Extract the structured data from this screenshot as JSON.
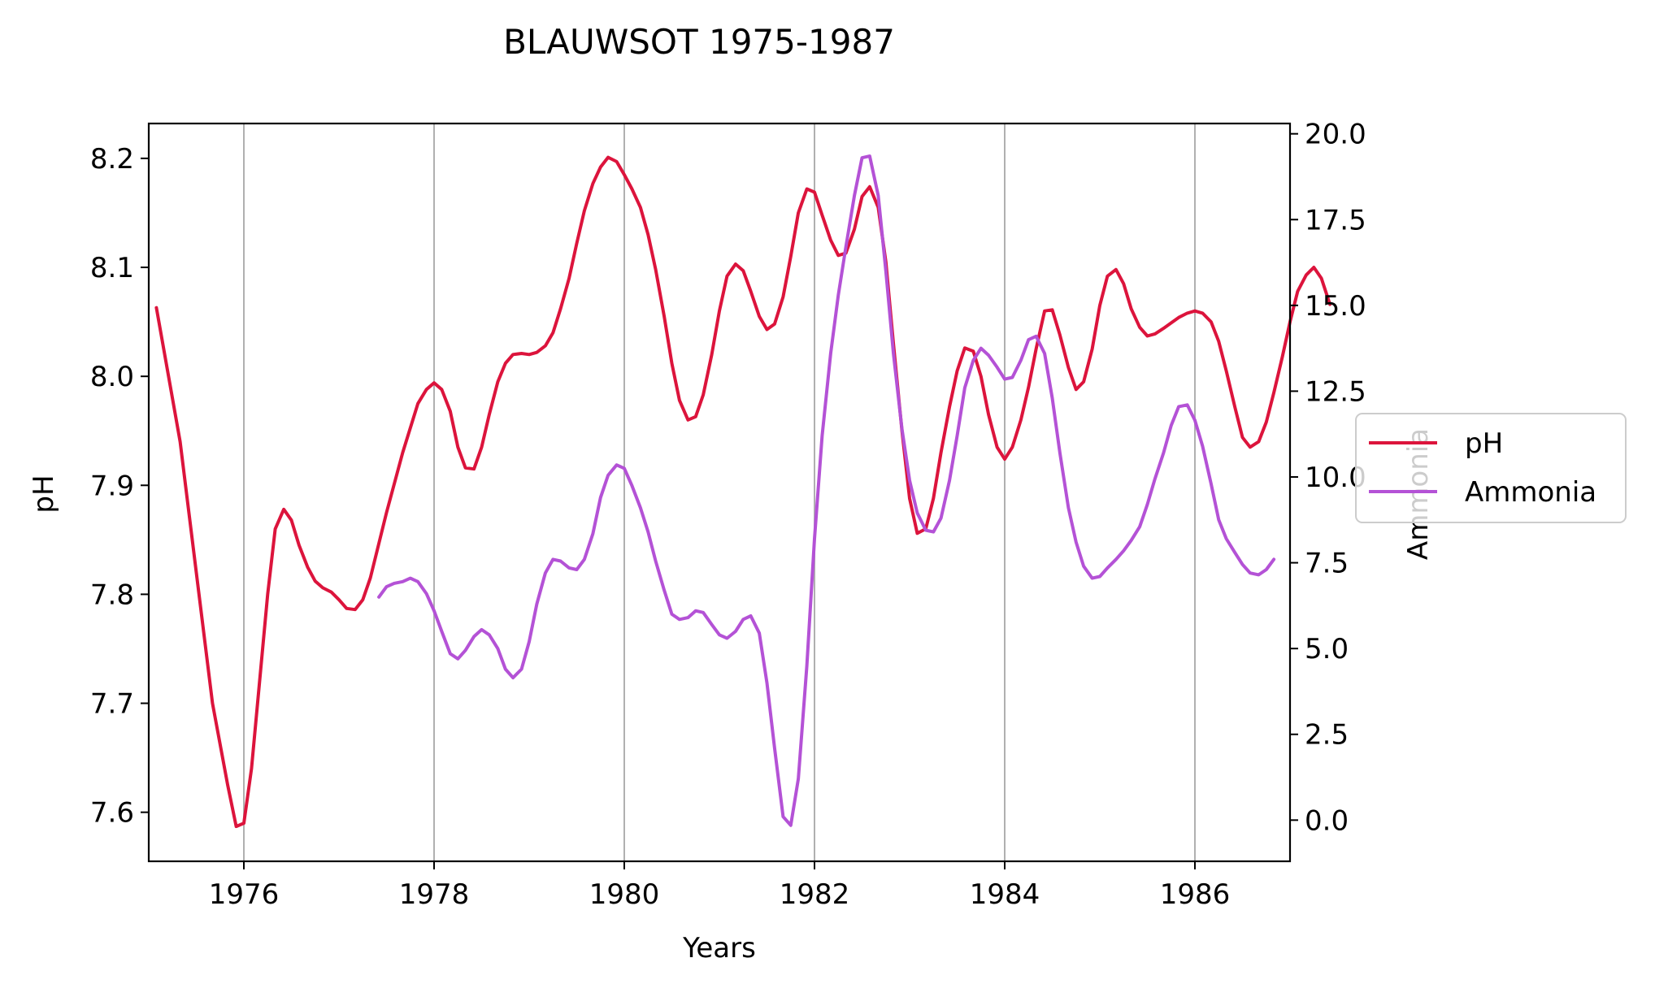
{
  "chart_data": {
    "type": "line",
    "title": "BLAUWSOT 1975-1987",
    "xlabel": "Years",
    "ylabel": "pH",
    "y2label": "Ammonia",
    "xlim": [
      1975.0,
      1987.0
    ],
    "ylim": [
      7.555,
      8.232
    ],
    "y2lim": [
      -1.2,
      20.3
    ],
    "x_ticks": [
      1976,
      1978,
      1980,
      1982,
      1984,
      1986
    ],
    "y_ticks": [
      7.6,
      7.7,
      7.8,
      7.9,
      8.0,
      8.1,
      8.2
    ],
    "y2_ticks": [
      0.0,
      2.5,
      5.0,
      7.5,
      10.0,
      12.5,
      15.0,
      17.5,
      20.0
    ],
    "x_grid": true,
    "legend_position": "center-right",
    "series": [
      {
        "name": "pH",
        "axis": "left",
        "color": "#dc143c",
        "points": [
          [
            1975.08,
            8.063
          ],
          [
            1975.33,
            7.94
          ],
          [
            1975.5,
            7.82
          ],
          [
            1975.67,
            7.7
          ],
          [
            1975.83,
            7.625
          ],
          [
            1975.92,
            7.587
          ],
          [
            1976.0,
            7.59
          ],
          [
            1976.08,
            7.64
          ],
          [
            1976.25,
            7.8
          ],
          [
            1976.33,
            7.86
          ],
          [
            1976.42,
            7.878
          ],
          [
            1976.5,
            7.868
          ],
          [
            1976.58,
            7.845
          ],
          [
            1976.67,
            7.825
          ],
          [
            1976.75,
            7.812
          ],
          [
            1976.83,
            7.806
          ],
          [
            1976.92,
            7.802
          ],
          [
            1977.0,
            7.795
          ],
          [
            1977.08,
            7.787
          ],
          [
            1977.17,
            7.786
          ],
          [
            1977.25,
            7.795
          ],
          [
            1977.33,
            7.815
          ],
          [
            1977.5,
            7.875
          ],
          [
            1977.67,
            7.93
          ],
          [
            1977.83,
            7.975
          ],
          [
            1977.92,
            7.988
          ],
          [
            1978.0,
            7.994
          ],
          [
            1978.08,
            7.988
          ],
          [
            1978.17,
            7.968
          ],
          [
            1978.25,
            7.935
          ],
          [
            1978.33,
            7.916
          ],
          [
            1978.42,
            7.915
          ],
          [
            1978.5,
            7.935
          ],
          [
            1978.58,
            7.965
          ],
          [
            1978.67,
            7.995
          ],
          [
            1978.75,
            8.012
          ],
          [
            1978.83,
            8.02
          ],
          [
            1978.92,
            8.021
          ],
          [
            1979.0,
            8.02
          ],
          [
            1979.08,
            8.022
          ],
          [
            1979.17,
            8.028
          ],
          [
            1979.25,
            8.04
          ],
          [
            1979.33,
            8.062
          ],
          [
            1979.42,
            8.09
          ],
          [
            1979.5,
            8.122
          ],
          [
            1979.58,
            8.152
          ],
          [
            1979.67,
            8.177
          ],
          [
            1979.75,
            8.192
          ],
          [
            1979.83,
            8.201
          ],
          [
            1979.92,
            8.197
          ],
          [
            1980.0,
            8.185
          ],
          [
            1980.08,
            8.172
          ],
          [
            1980.17,
            8.155
          ],
          [
            1980.25,
            8.13
          ],
          [
            1980.33,
            8.098
          ],
          [
            1980.42,
            8.055
          ],
          [
            1980.5,
            8.012
          ],
          [
            1980.58,
            7.978
          ],
          [
            1980.67,
            7.96
          ],
          [
            1980.75,
            7.963
          ],
          [
            1980.83,
            7.983
          ],
          [
            1980.92,
            8.02
          ],
          [
            1981.0,
            8.06
          ],
          [
            1981.08,
            8.092
          ],
          [
            1981.17,
            8.103
          ],
          [
            1981.25,
            8.097
          ],
          [
            1981.33,
            8.078
          ],
          [
            1981.42,
            8.055
          ],
          [
            1981.5,
            8.043
          ],
          [
            1981.58,
            8.048
          ],
          [
            1981.67,
            8.073
          ],
          [
            1981.75,
            8.11
          ],
          [
            1981.83,
            8.15
          ],
          [
            1981.92,
            8.172
          ],
          [
            1982.0,
            8.169
          ],
          [
            1982.08,
            8.148
          ],
          [
            1982.17,
            8.125
          ],
          [
            1982.25,
            8.111
          ],
          [
            1982.33,
            8.113
          ],
          [
            1982.42,
            8.135
          ],
          [
            1982.5,
            8.165
          ],
          [
            1982.58,
            8.174
          ],
          [
            1982.67,
            8.155
          ],
          [
            1982.75,
            8.105
          ],
          [
            1982.83,
            8.03
          ],
          [
            1982.92,
            7.95
          ],
          [
            1983.0,
            7.888
          ],
          [
            1983.08,
            7.856
          ],
          [
            1983.17,
            7.86
          ],
          [
            1983.25,
            7.888
          ],
          [
            1983.33,
            7.93
          ],
          [
            1983.42,
            7.972
          ],
          [
            1983.5,
            8.005
          ],
          [
            1983.58,
            8.026
          ],
          [
            1983.67,
            8.023
          ],
          [
            1983.75,
            8.0
          ],
          [
            1983.83,
            7.965
          ],
          [
            1983.92,
            7.935
          ],
          [
            1984.0,
            7.924
          ],
          [
            1984.08,
            7.935
          ],
          [
            1984.17,
            7.96
          ],
          [
            1984.25,
            7.99
          ],
          [
            1984.33,
            8.025
          ],
          [
            1984.42,
            8.06
          ],
          [
            1984.5,
            8.061
          ],
          [
            1984.58,
            8.038
          ],
          [
            1984.67,
            8.008
          ],
          [
            1984.75,
            7.988
          ],
          [
            1984.83,
            7.995
          ],
          [
            1984.92,
            8.025
          ],
          [
            1985.0,
            8.065
          ],
          [
            1985.08,
            8.092
          ],
          [
            1985.17,
            8.098
          ],
          [
            1985.25,
            8.085
          ],
          [
            1985.33,
            8.062
          ],
          [
            1985.42,
            8.045
          ],
          [
            1985.5,
            8.037
          ],
          [
            1985.58,
            8.039
          ],
          [
            1985.67,
            8.044
          ],
          [
            1985.75,
            8.049
          ],
          [
            1985.83,
            8.054
          ],
          [
            1985.92,
            8.058
          ],
          [
            1986.0,
            8.06
          ],
          [
            1986.08,
            8.058
          ],
          [
            1986.17,
            8.05
          ],
          [
            1986.25,
            8.032
          ],
          [
            1986.33,
            8.005
          ],
          [
            1986.42,
            7.972
          ],
          [
            1986.5,
            7.944
          ],
          [
            1986.58,
            7.935
          ],
          [
            1986.67,
            7.94
          ],
          [
            1986.75,
            7.958
          ],
          [
            1986.83,
            7.985
          ],
          [
            1986.92,
            8.018
          ],
          [
            1987.0,
            8.05
          ],
          [
            1987.08,
            8.078
          ],
          [
            1987.17,
            8.093
          ],
          [
            1987.25,
            8.1
          ],
          [
            1987.33,
            8.09
          ],
          [
            1987.42,
            8.066
          ]
        ]
      },
      {
        "name": "Ammonia",
        "axis": "right",
        "color": "#b452d6",
        "points": [
          [
            1977.42,
            6.5
          ],
          [
            1977.5,
            6.8
          ],
          [
            1977.58,
            6.9
          ],
          [
            1977.67,
            6.95
          ],
          [
            1977.75,
            7.05
          ],
          [
            1977.83,
            6.95
          ],
          [
            1977.92,
            6.6
          ],
          [
            1978.0,
            6.1
          ],
          [
            1978.08,
            5.5
          ],
          [
            1978.17,
            4.85
          ],
          [
            1978.25,
            4.7
          ],
          [
            1978.33,
            4.95
          ],
          [
            1978.42,
            5.35
          ],
          [
            1978.5,
            5.55
          ],
          [
            1978.58,
            5.4
          ],
          [
            1978.67,
            5.0
          ],
          [
            1978.75,
            4.4
          ],
          [
            1978.83,
            4.15
          ],
          [
            1978.92,
            4.4
          ],
          [
            1979.0,
            5.2
          ],
          [
            1979.08,
            6.3
          ],
          [
            1979.17,
            7.2
          ],
          [
            1979.25,
            7.6
          ],
          [
            1979.33,
            7.55
          ],
          [
            1979.42,
            7.35
          ],
          [
            1979.5,
            7.3
          ],
          [
            1979.58,
            7.6
          ],
          [
            1979.67,
            8.35
          ],
          [
            1979.75,
            9.4
          ],
          [
            1979.83,
            10.05
          ],
          [
            1979.92,
            10.35
          ],
          [
            1980.0,
            10.25
          ],
          [
            1980.08,
            9.75
          ],
          [
            1980.17,
            9.1
          ],
          [
            1980.25,
            8.4
          ],
          [
            1980.33,
            7.55
          ],
          [
            1980.42,
            6.7
          ],
          [
            1980.5,
            6.0
          ],
          [
            1980.58,
            5.85
          ],
          [
            1980.67,
            5.9
          ],
          [
            1980.75,
            6.1
          ],
          [
            1980.83,
            6.05
          ],
          [
            1980.92,
            5.7
          ],
          [
            1981.0,
            5.4
          ],
          [
            1981.08,
            5.3
          ],
          [
            1981.17,
            5.5
          ],
          [
            1981.25,
            5.85
          ],
          [
            1981.33,
            5.95
          ],
          [
            1981.42,
            5.45
          ],
          [
            1981.5,
            4.0
          ],
          [
            1981.58,
            2.1
          ],
          [
            1981.67,
            0.1
          ],
          [
            1981.75,
            -0.15
          ],
          [
            1981.83,
            1.2
          ],
          [
            1981.92,
            4.5
          ],
          [
            1982.0,
            8.2
          ],
          [
            1982.08,
            11.2
          ],
          [
            1982.17,
            13.6
          ],
          [
            1982.25,
            15.3
          ],
          [
            1982.33,
            16.7
          ],
          [
            1982.42,
            18.2
          ],
          [
            1982.5,
            19.3
          ],
          [
            1982.58,
            19.35
          ],
          [
            1982.67,
            18.2
          ],
          [
            1982.75,
            16.0
          ],
          [
            1982.83,
            13.6
          ],
          [
            1982.92,
            11.4
          ],
          [
            1983.0,
            9.9
          ],
          [
            1983.08,
            8.95
          ],
          [
            1983.17,
            8.45
          ],
          [
            1983.25,
            8.4
          ],
          [
            1983.33,
            8.8
          ],
          [
            1983.42,
            9.9
          ],
          [
            1983.5,
            11.2
          ],
          [
            1983.58,
            12.6
          ],
          [
            1983.67,
            13.4
          ],
          [
            1983.75,
            13.75
          ],
          [
            1983.83,
            13.55
          ],
          [
            1983.92,
            13.2
          ],
          [
            1984.0,
            12.85
          ],
          [
            1984.08,
            12.9
          ],
          [
            1984.17,
            13.4
          ],
          [
            1984.25,
            14.0
          ],
          [
            1984.33,
            14.1
          ],
          [
            1984.42,
            13.6
          ],
          [
            1984.5,
            12.3
          ],
          [
            1984.58,
            10.7
          ],
          [
            1984.67,
            9.1
          ],
          [
            1984.75,
            8.1
          ],
          [
            1984.83,
            7.4
          ],
          [
            1984.92,
            7.05
          ],
          [
            1985.0,
            7.1
          ],
          [
            1985.08,
            7.35
          ],
          [
            1985.17,
            7.6
          ],
          [
            1985.25,
            7.85
          ],
          [
            1985.33,
            8.15
          ],
          [
            1985.42,
            8.55
          ],
          [
            1985.5,
            9.2
          ],
          [
            1985.58,
            9.95
          ],
          [
            1985.67,
            10.7
          ],
          [
            1985.75,
            11.5
          ],
          [
            1985.83,
            12.05
          ],
          [
            1985.92,
            12.1
          ],
          [
            1986.0,
            11.65
          ],
          [
            1986.08,
            10.9
          ],
          [
            1986.17,
            9.8
          ],
          [
            1986.25,
            8.75
          ],
          [
            1986.33,
            8.2
          ],
          [
            1986.42,
            7.8
          ],
          [
            1986.5,
            7.45
          ],
          [
            1986.58,
            7.2
          ],
          [
            1986.67,
            7.15
          ],
          [
            1986.75,
            7.3
          ],
          [
            1986.83,
            7.6
          ]
        ]
      }
    ]
  }
}
